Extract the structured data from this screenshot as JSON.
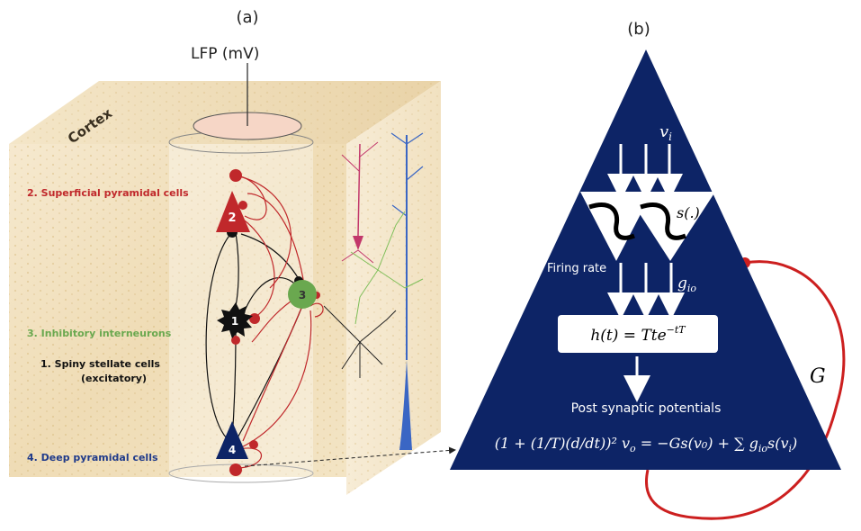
{
  "panel_a": {
    "label": "(a)",
    "lfp_label": "LFP (mV)",
    "cortex_label": "Cortex",
    "layers": [
      {
        "text": "2. Superficial pyramidal cells",
        "color": "#c0282b"
      },
      {
        "text": "3. Inhibitory interneurons",
        "color": "#6aa84f"
      },
      {
        "text": "1.      Spiny stellate cells",
        "color": "#111111"
      },
      {
        "text": "(excitatory)",
        "color": "#111111"
      },
      {
        "text": "4. Deep pyramidal cells",
        "color": "#1f3a8a"
      }
    ],
    "cells": [
      {
        "num": "1",
        "color": "#111111"
      },
      {
        "num": "2",
        "color": "#c0282b"
      },
      {
        "num": "3",
        "color": "#6aa84f"
      },
      {
        "num": "4",
        "color": "#0d2466"
      }
    ]
  },
  "panel_b": {
    "label": "(b)",
    "input_var": "v",
    "input_sub": "i",
    "sigmoid": "s(.)",
    "firing_rate": "Firing rate",
    "gain_var": "g",
    "gain_sub": "io",
    "kernel": "h(t) = Tte",
    "kernel_exp": "−tT",
    "psp_label": "Post synaptic potentials",
    "equation": "(1 + (1/T)(d/dt))² v",
    "equation_sub": "o",
    "equation_rhs": "= −Gs(v₀) + ∑ g",
    "equation_rhs_sub": "io",
    "equation_tail": "s(v",
    "equation_tail_sub": "i",
    "equation_end": ")",
    "feedback_label": "G",
    "colors": {
      "triangle": "#0d2466",
      "feedback": "#cc1f1f"
    }
  }
}
